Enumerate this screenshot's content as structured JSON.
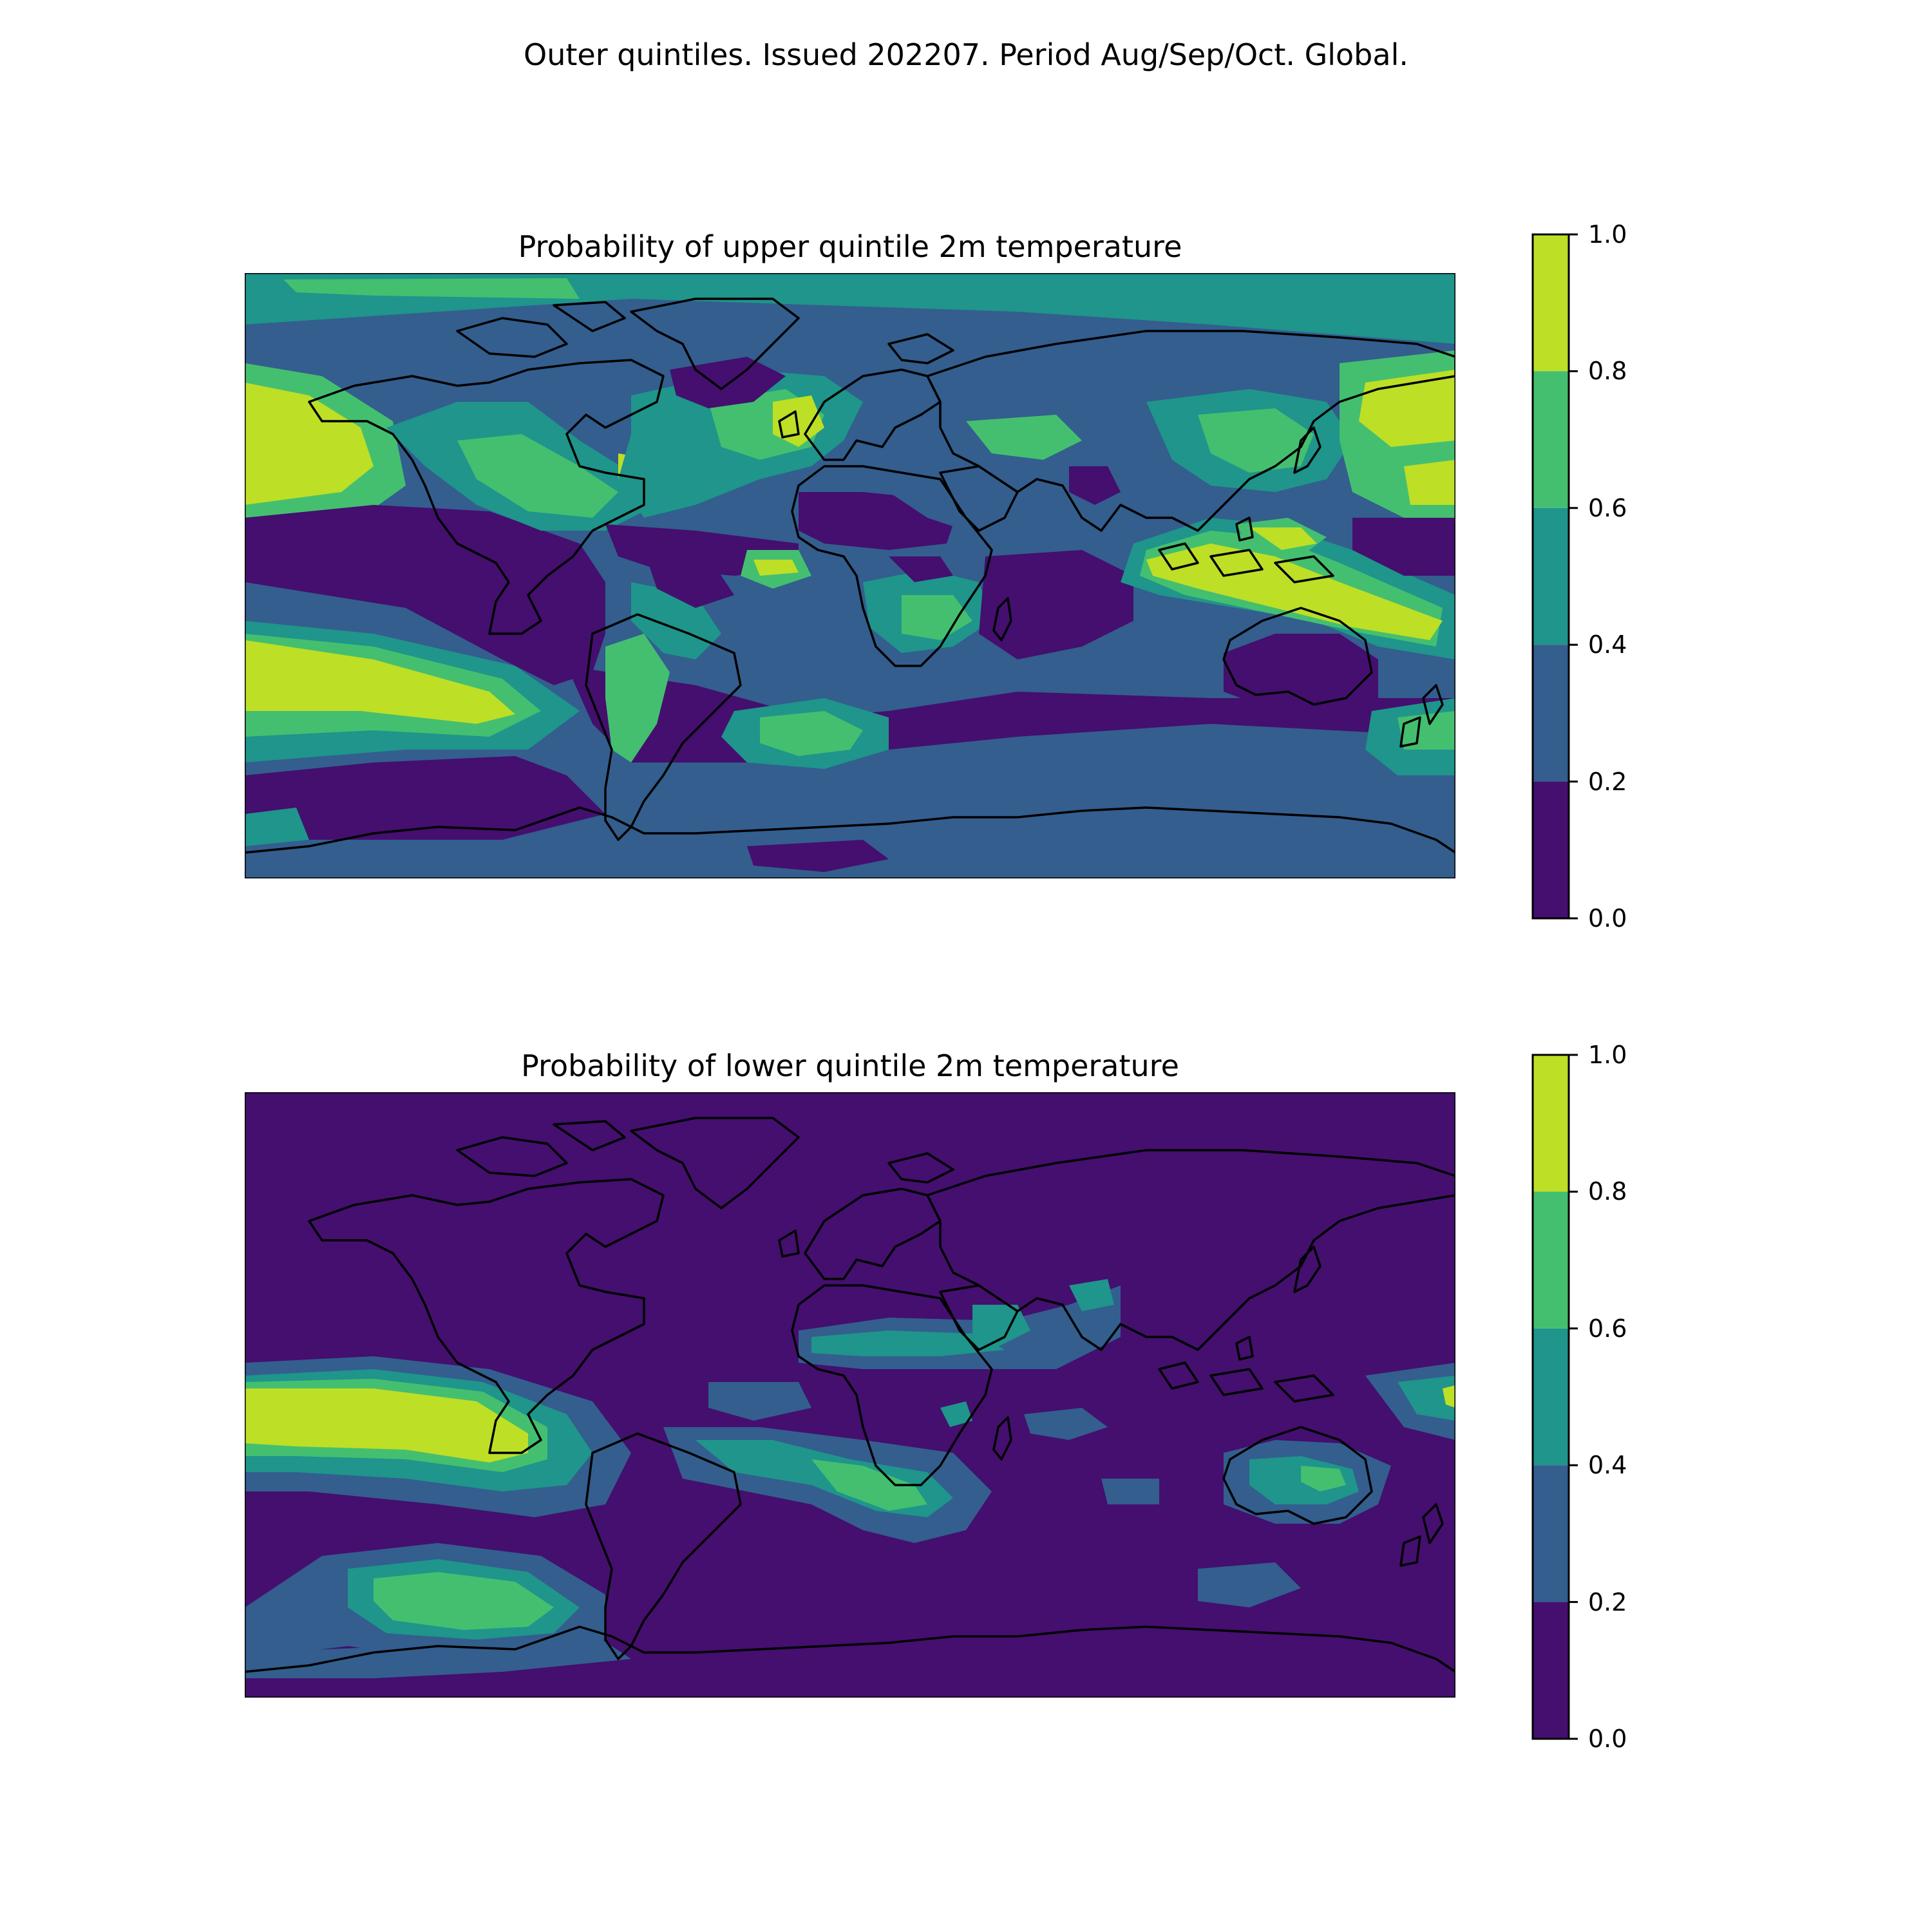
{
  "suptitle": "Outer quintiles. Issued 202207. Period Aug/Sep/Oct. Global.",
  "colormap": {
    "name": "viridis",
    "bins": [
      {
        "range": [
          0.0,
          0.2
        ],
        "color": "#440f6e"
      },
      {
        "range": [
          0.2,
          0.4
        ],
        "color": "#335e8e"
      },
      {
        "range": [
          0.4,
          0.6
        ],
        "color": "#1f958b"
      },
      {
        "range": [
          0.6,
          0.8
        ],
        "color": "#44bf70"
      },
      {
        "range": [
          0.8,
          1.0
        ],
        "color": "#bddf26"
      }
    ],
    "tick_labels": [
      "0.0",
      "0.2",
      "0.4",
      "0.6",
      "0.8",
      "1.0"
    ]
  },
  "panels": [
    {
      "id": "upper",
      "title": "Probability of upper quintile 2m temperature",
      "background_bin": 1,
      "regions": [
        {
          "name": "Arctic Ocean",
          "bin": 2
        },
        {
          "name": "North Pacific",
          "bin": 4
        },
        {
          "name": "Tropical Pacific",
          "bin": 0
        },
        {
          "name": "South Pacific subtropics",
          "bin": 4
        },
        {
          "name": "Southern Ocean",
          "bin": 0
        },
        {
          "name": "North Atlantic",
          "bin": 3
        },
        {
          "name": "Tropical Atlantic",
          "bin": 4
        },
        {
          "name": "South Atlantic",
          "bin": 3
        },
        {
          "name": "Sahara",
          "bin": 0
        },
        {
          "name": "Indian Ocean",
          "bin": 0
        },
        {
          "name": "Maritime Continent",
          "bin": 4
        },
        {
          "name": "Northwest Pacific",
          "bin": 4
        },
        {
          "name": "Australia",
          "bin": 0
        },
        {
          "name": "Antarctica",
          "bin": 1
        }
      ]
    },
    {
      "id": "lower",
      "title": "Probability of lower quintile 2m temperature",
      "background_bin": 0,
      "regions": [
        {
          "name": "Southeast Pacific",
          "bin": 4
        },
        {
          "name": "South Pacific high latitudes",
          "bin": 3
        },
        {
          "name": "Sahel",
          "bin": 2
        },
        {
          "name": "Arabian Peninsula",
          "bin": 2
        },
        {
          "name": "Southern Africa",
          "bin": 3
        },
        {
          "name": "South Atlantic",
          "bin": 1
        },
        {
          "name": "Australia",
          "bin": 2
        },
        {
          "name": "Southwest Pacific",
          "bin": 2
        },
        {
          "name": "Antarctic coast",
          "bin": 1
        }
      ]
    }
  ]
}
